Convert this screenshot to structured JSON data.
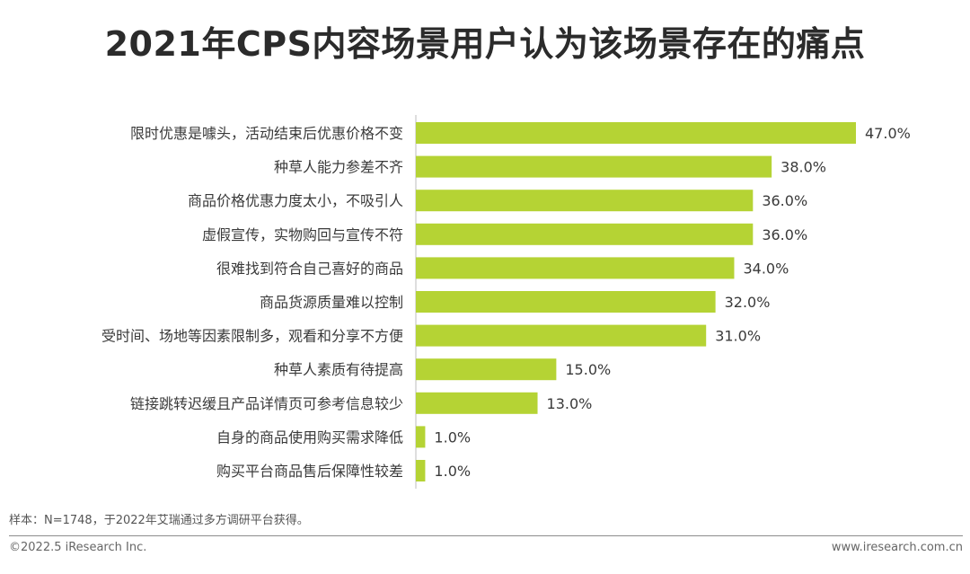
{
  "title": "2021年CPS内容场景用户认为该场景存在的痛点",
  "footnote": "样本：N=1748，于2022年艾瑞通过多方调研平台获得。",
  "copyright": "©2022.5 iResearch Inc.",
  "website": "www.iresearch.com.cn",
  "colors": {
    "bar": "#b5d334",
    "label": "#3a3a3a",
    "axis": "#bdbdbd"
  },
  "chart_data": {
    "type": "bar",
    "orientation": "horizontal",
    "categories": [
      "限时优惠是噱头，活动结束后优惠价格不变",
      "种草人能力参差不齐",
      "商品价格优惠力度太小，不吸引人",
      "虚假宣传，实物购回与宣传不符",
      "很难找到符合自己喜好的商品",
      "商品货源质量难以控制",
      "受时间、场地等因素限制多，观看和分享不方便",
      "种草人素质有待提高",
      "链接跳转迟缓且产品详情页可参考信息较少",
      "自身的商品使用购买需求降低",
      "购买平台商品售后保障性较差"
    ],
    "values": [
      47.0,
      38.0,
      36.0,
      36.0,
      34.0,
      32.0,
      31.0,
      15.0,
      13.0,
      1.0,
      1.0
    ],
    "value_labels": [
      "47.0%",
      "38.0%",
      "36.0%",
      "36.0%",
      "34.0%",
      "32.0%",
      "31.0%",
      "15.0%",
      "13.0%",
      "1.0%",
      "1.0%"
    ],
    "unit": "%",
    "xlim": [
      0,
      47
    ],
    "grid": false,
    "legend": "none"
  }
}
